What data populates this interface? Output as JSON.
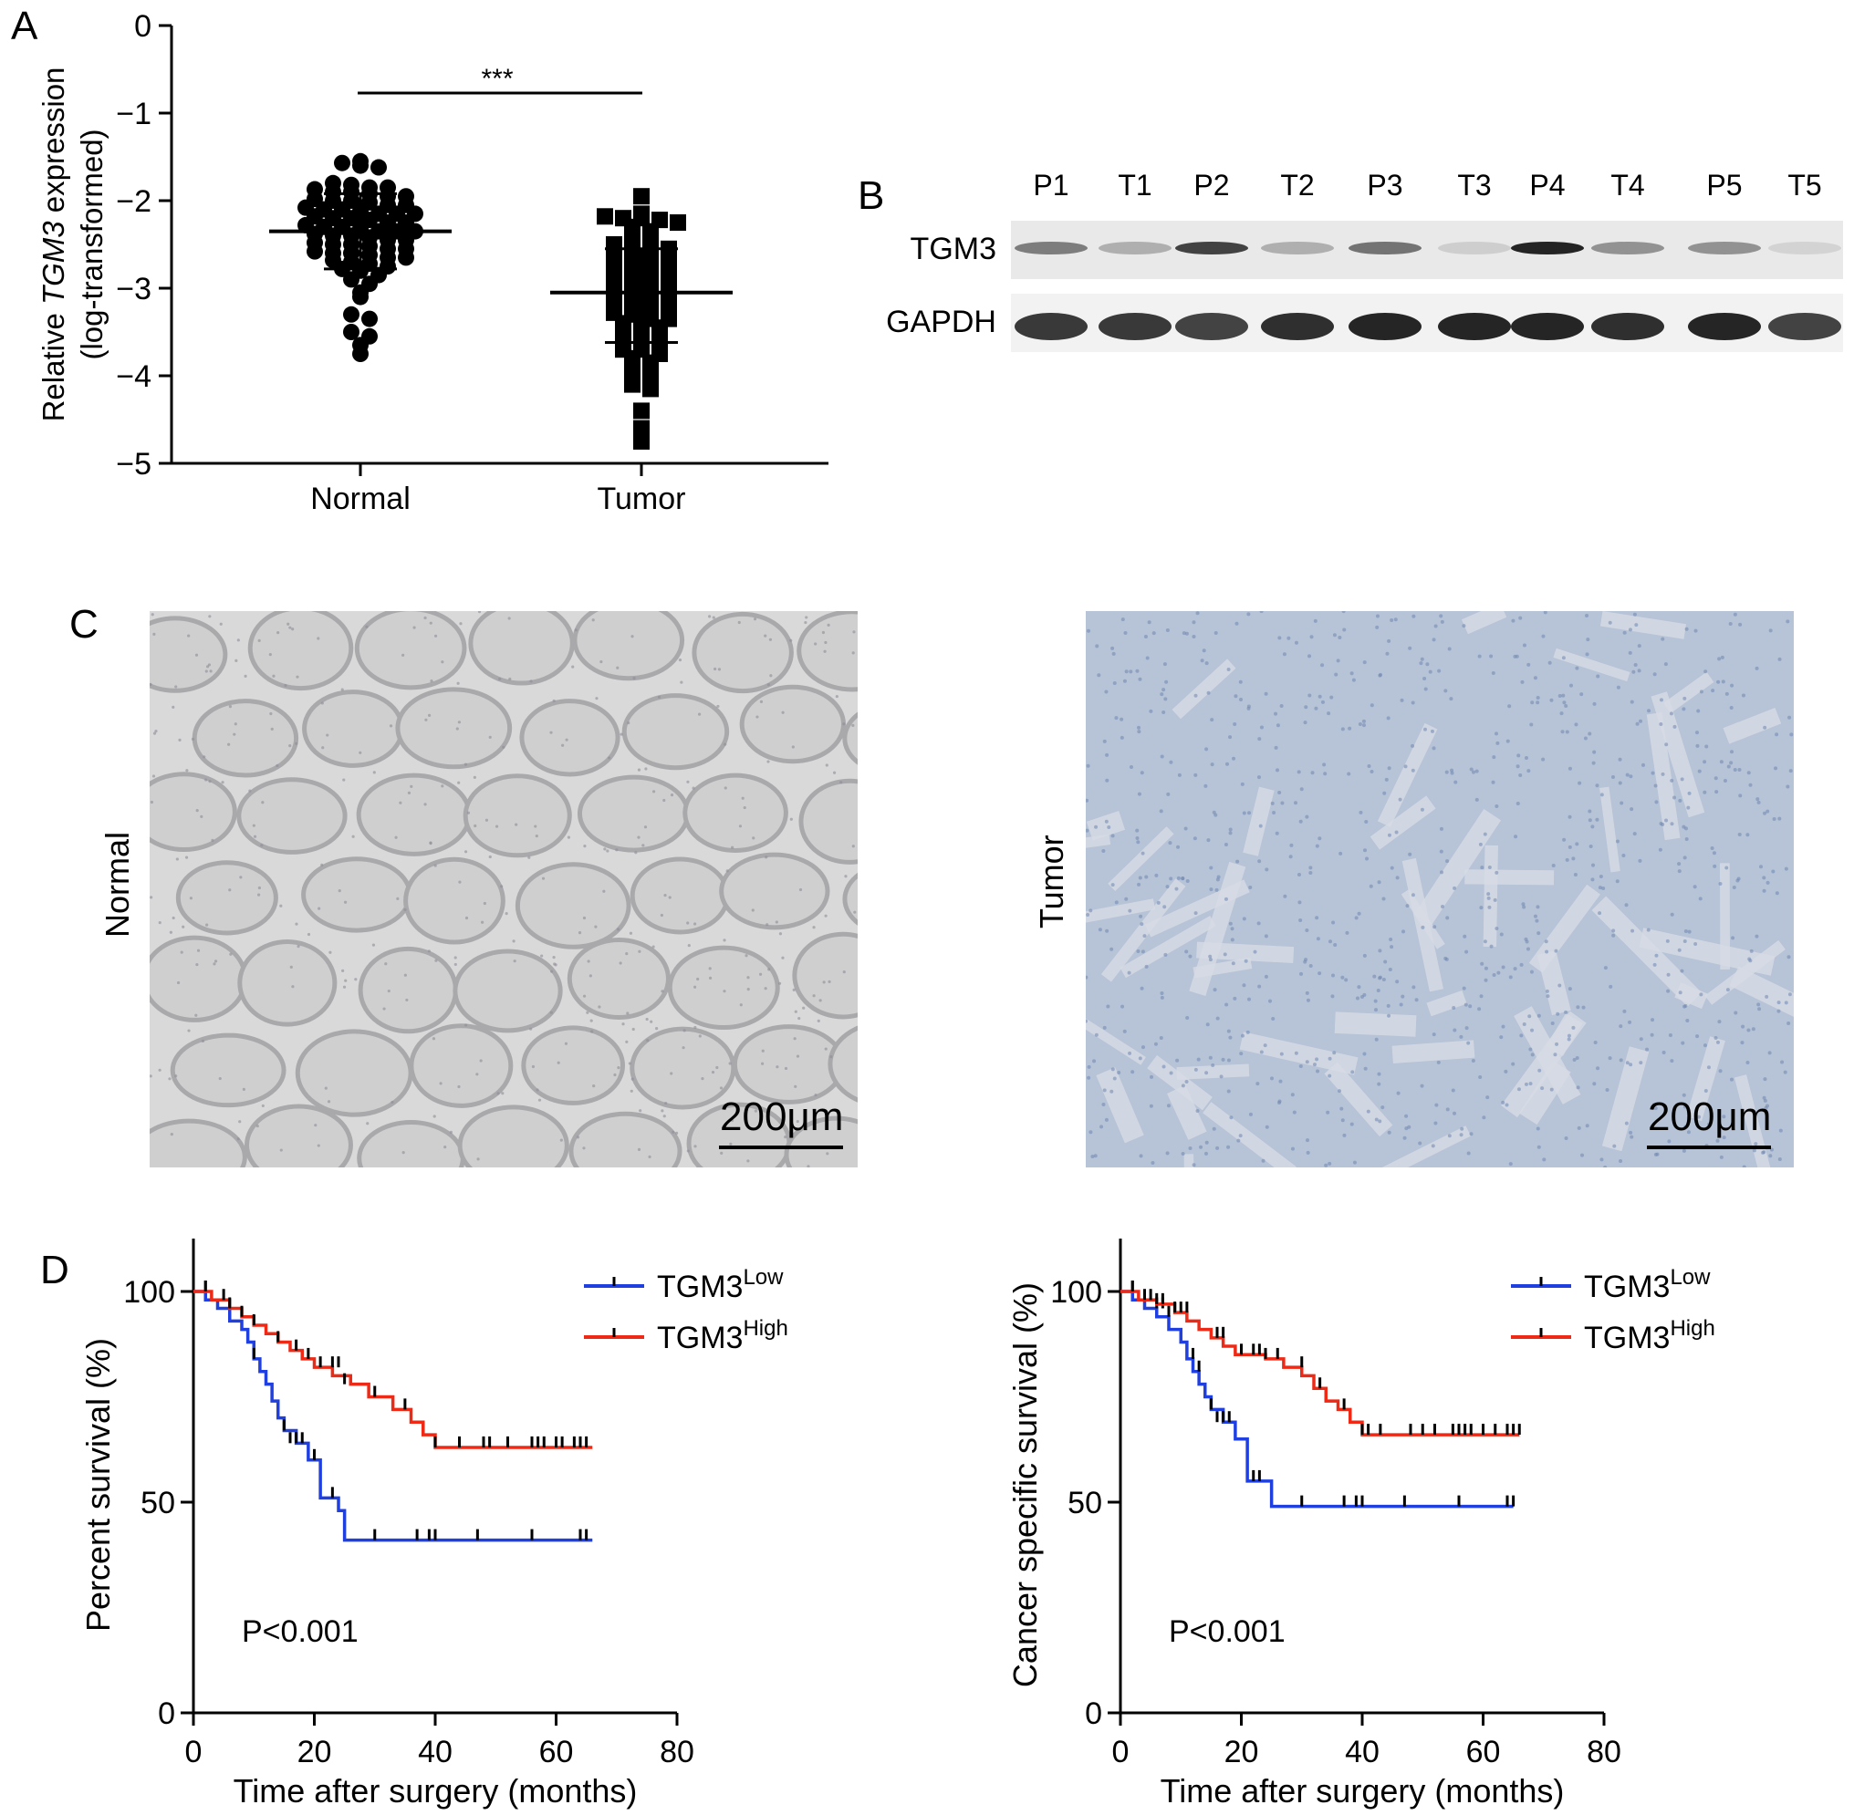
{
  "panels": {
    "a": {
      "letter": "A"
    },
    "b": {
      "letter": "B"
    },
    "c": {
      "letter": "C"
    },
    "d": {
      "letter": "D"
    }
  },
  "chart_data": [
    {
      "id": "A",
      "type": "scatter",
      "ylabel_parts": [
        "Relative ",
        "TGM3",
        " expression"
      ],
      "ylabel2": "(log-transformed)",
      "ylim": [
        -5,
        0
      ],
      "yticks": [
        0,
        -1,
        -2,
        -3,
        -4,
        -5
      ],
      "ytick_labels": [
        "0",
        "−1",
        "−2",
        "−3",
        "−4",
        "−5"
      ],
      "categories": [
        "Normal",
        "Tumor"
      ],
      "significance": "***",
      "summary": [
        {
          "group": "Normal",
          "mean": -2.35,
          "sd_low": -2.78,
          "sd_high": -1.92
        },
        {
          "group": "Tumor",
          "mean": -3.05,
          "sd_low": -3.62,
          "sd_high": -2.55
        }
      ],
      "series": [
        {
          "group": "Normal",
          "marker": "circle",
          "values": [
            -1.55,
            -1.57,
            -1.6,
            -1.62,
            -1.8,
            -1.82,
            -1.85,
            -1.85,
            -1.87,
            -1.9,
            -1.9,
            -1.92,
            -1.95,
            -1.95,
            -1.98,
            -2.0,
            -2.0,
            -2.02,
            -2.05,
            -2.05,
            -2.08,
            -2.1,
            -2.1,
            -2.12,
            -2.15,
            -2.15,
            -2.15,
            -2.18,
            -2.2,
            -2.2,
            -2.22,
            -2.25,
            -2.25,
            -2.28,
            -2.3,
            -2.3,
            -2.32,
            -2.35,
            -2.35,
            -2.35,
            -2.38,
            -2.4,
            -2.4,
            -2.42,
            -2.45,
            -2.45,
            -2.48,
            -2.5,
            -2.5,
            -2.52,
            -2.55,
            -2.55,
            -2.58,
            -2.6,
            -2.6,
            -2.62,
            -2.65,
            -2.65,
            -2.68,
            -2.7,
            -2.72,
            -2.75,
            -2.78,
            -2.8,
            -2.85,
            -2.9,
            -2.95,
            -3.05,
            -3.1,
            -3.3,
            -3.35,
            -3.5,
            -3.55,
            -3.65,
            -3.75
          ]
        },
        {
          "group": "Tumor",
          "marker": "square",
          "values": [
            -1.95,
            -2.15,
            -2.18,
            -2.2,
            -2.2,
            -2.22,
            -2.25,
            -2.3,
            -2.35,
            -2.4,
            -2.45,
            -2.5,
            -2.5,
            -2.55,
            -2.55,
            -2.6,
            -2.6,
            -2.62,
            -2.65,
            -2.7,
            -2.7,
            -2.72,
            -2.75,
            -2.8,
            -2.8,
            -2.85,
            -2.85,
            -2.88,
            -2.9,
            -2.95,
            -2.95,
            -3.0,
            -3.0,
            -3.02,
            -3.05,
            -3.1,
            -3.1,
            -3.12,
            -3.15,
            -3.2,
            -3.2,
            -3.25,
            -3.25,
            -3.28,
            -3.3,
            -3.35,
            -3.35,
            -3.4,
            -3.45,
            -3.45,
            -3.5,
            -3.5,
            -3.55,
            -3.6,
            -3.6,
            -3.65,
            -3.7,
            -3.7,
            -3.75,
            -3.8,
            -3.85,
            -3.9,
            -3.95,
            -4.0,
            -4.05,
            -4.1,
            -4.15,
            -4.4,
            -4.6,
            -4.75
          ]
        }
      ]
    },
    {
      "id": "D-left",
      "type": "line",
      "xlabel": "Time after surgery (months)",
      "ylabel": "Percent survival (%)",
      "xlim": [
        0,
        80
      ],
      "ylim": [
        0,
        100
      ],
      "xticks": [
        0,
        20,
        40,
        60,
        80
      ],
      "yticks": [
        0,
        50,
        100
      ],
      "p_value": "P<0.001",
      "legend": [
        {
          "base": "TGM3",
          "sup": "Low",
          "color": "#1f3fe0"
        },
        {
          "base": "TGM3",
          "sup": "High",
          "color": "#ee2a16"
        }
      ],
      "series": [
        {
          "name": "TGM3Low",
          "color": "#1f3fe0",
          "x": [
            0,
            2,
            4,
            6,
            8,
            9,
            10,
            11,
            12,
            13,
            14,
            15,
            17,
            19,
            21,
            24,
            25,
            66
          ],
          "y": [
            100,
            98,
            96,
            93,
            91,
            88,
            84,
            81,
            78,
            74,
            70,
            67,
            64,
            60,
            51,
            48,
            41,
            41
          ],
          "censor_x": [
            2,
            10,
            15,
            16,
            17,
            18,
            20,
            23,
            30,
            37,
            39,
            40,
            47,
            56,
            64,
            65
          ],
          "censor_y": [
            100,
            84,
            67,
            64,
            64,
            64,
            60,
            51,
            41,
            41,
            41,
            41,
            41,
            41,
            41,
            41
          ]
        },
        {
          "name": "TGM3High",
          "color": "#ee2a16",
          "x": [
            0,
            3,
            6,
            8,
            10,
            12,
            14,
            16,
            18,
            20,
            23,
            26,
            29,
            33,
            36,
            38,
            40,
            66
          ],
          "y": [
            100,
            98,
            96,
            94,
            92,
            90,
            88,
            86,
            84,
            82,
            80,
            78,
            75,
            72,
            69,
            66,
            63,
            63
          ],
          "censor_x": [
            2,
            5,
            6,
            8,
            10,
            14,
            17,
            19,
            21,
            23,
            24,
            25,
            30,
            35,
            40,
            44,
            48,
            49,
            52,
            56,
            57,
            58,
            60,
            61,
            63,
            64,
            65
          ],
          "censor_y": [
            100,
            98,
            96,
            94,
            92,
            88,
            86,
            84,
            82,
            82,
            82,
            78,
            75,
            72,
            63,
            63,
            63,
            63,
            63,
            63,
            63,
            63,
            63,
            63,
            63,
            63,
            63
          ]
        }
      ]
    },
    {
      "id": "D-right",
      "type": "line",
      "xlabel": "Time after surgery (months)",
      "ylabel": "Cancer specific survival (%)",
      "xlim": [
        0,
        80
      ],
      "ylim": [
        0,
        100
      ],
      "xticks": [
        0,
        20,
        40,
        60,
        80
      ],
      "yticks": [
        0,
        50,
        100
      ],
      "p_value": "P<0.001",
      "legend": [
        {
          "base": "TGM3",
          "sup": "Low",
          "color": "#1f3fe0"
        },
        {
          "base": "TGM3",
          "sup": "High",
          "color": "#ee2a16"
        }
      ],
      "series": [
        {
          "name": "TGM3Low",
          "color": "#1f3fe0",
          "x": [
            0,
            2,
            4,
            6,
            8,
            10,
            11,
            12,
            13,
            14,
            15,
            17,
            19,
            21,
            25,
            65
          ],
          "y": [
            100,
            98,
            96,
            94,
            91,
            88,
            84,
            81,
            78,
            75,
            72,
            69,
            65,
            55,
            49,
            49
          ],
          "censor_x": [
            2,
            6,
            7,
            8,
            12,
            13,
            15,
            16,
            17,
            18,
            22,
            23,
            30,
            37,
            39,
            40,
            47,
            56,
            64,
            65
          ],
          "censor_y": [
            100,
            96,
            96,
            94,
            84,
            81,
            72,
            69,
            69,
            69,
            55,
            55,
            49,
            49,
            49,
            49,
            49,
            49,
            49,
            49
          ]
        },
        {
          "name": "TGM3High",
          "color": "#ee2a16",
          "x": [
            0,
            3,
            6,
            9,
            11,
            13,
            15,
            17,
            19,
            24,
            27,
            30,
            32,
            34,
            36,
            38,
            40,
            66
          ],
          "y": [
            100,
            98,
            97,
            95,
            93,
            91,
            89,
            87,
            85,
            84,
            82,
            80,
            77,
            74,
            72,
            69,
            66,
            66
          ],
          "censor_x": [
            2,
            4,
            5,
            6,
            7,
            9,
            10,
            11,
            16,
            17,
            20,
            22,
            23,
            24,
            26,
            30,
            33,
            37,
            40,
            41,
            43,
            48,
            50,
            52,
            55,
            56,
            57,
            58,
            60,
            62,
            64,
            65,
            66
          ],
          "censor_y": [
            100,
            98,
            98,
            97,
            97,
            95,
            95,
            95,
            89,
            89,
            85,
            85,
            85,
            84,
            84,
            82,
            77,
            72,
            66,
            66,
            66,
            66,
            66,
            66,
            66,
            66,
            66,
            66,
            66,
            66,
            66,
            66,
            66
          ]
        }
      ]
    }
  ],
  "western_blot": {
    "lanes": [
      "P1",
      "T1",
      "P2",
      "T2",
      "P3",
      "T3",
      "P4",
      "T4",
      "P5",
      "T5"
    ],
    "rows": [
      {
        "label": "TGM3",
        "intensity": [
          0.55,
          0.3,
          0.85,
          0.3,
          0.6,
          0.15,
          1.0,
          0.45,
          0.45,
          0.12
        ]
      },
      {
        "label": "GAPDH",
        "intensity": [
          0.9,
          0.9,
          0.85,
          0.95,
          1.0,
          1.0,
          1.0,
          0.95,
          1.0,
          0.85
        ]
      }
    ]
  },
  "micrographs": [
    {
      "label": "Normal",
      "scale": "200μm",
      "tint": "#c8c8c8"
    },
    {
      "label": "Tumor",
      "scale": "200μm",
      "tint": "#8fa3c6"
    }
  ]
}
